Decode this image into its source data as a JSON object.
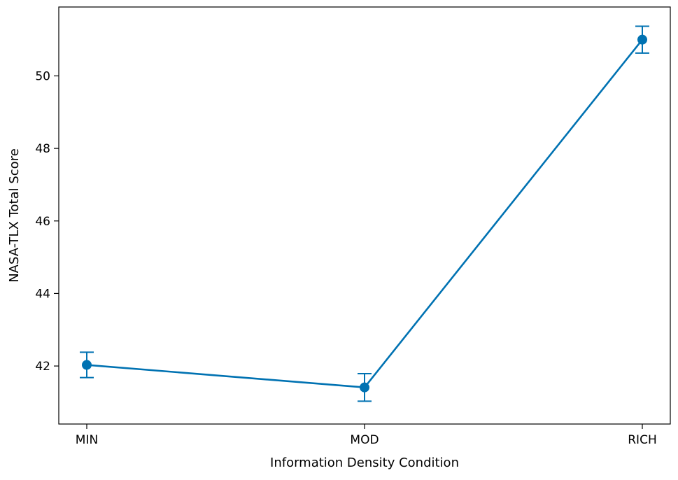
{
  "chart_data": {
    "type": "line",
    "title": "",
    "xlabel": "Information Density Condition",
    "ylabel": "NASA-TLX Total Score",
    "categories": [
      "MIN",
      "MOD",
      "RICH"
    ],
    "series": [
      {
        "values": [
          42.03,
          41.41,
          51.0
        ],
        "error": [
          0.35,
          0.38,
          0.37
        ],
        "color": "#0072B2"
      }
    ],
    "ylim": [
      40.4,
      51.9
    ],
    "yticks": [
      42,
      44,
      46,
      48,
      50
    ],
    "grid": false,
    "legend": "none"
  }
}
